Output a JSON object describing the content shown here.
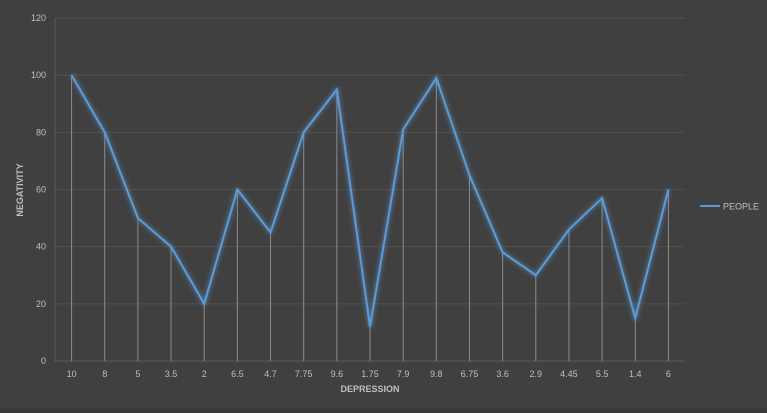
{
  "chart_data": {
    "type": "line",
    "title": "",
    "xlabel": "DEPRESSION",
    "ylabel": "NEGATIVITY",
    "categories": [
      "10",
      "8",
      "5",
      "3.5",
      "2",
      "6.5",
      "4.7",
      "7.75",
      "9.6",
      "1.75",
      "7.9",
      "9.8",
      "6.75",
      "3.6",
      "2.9",
      "4.45",
      "5.5",
      "1.4",
      "6"
    ],
    "series": [
      {
        "name": "PEOPLE",
        "values": [
          100,
          80,
          50,
          40,
          20,
          60,
          45,
          80,
          95,
          12,
          81,
          99,
          65,
          38,
          30,
          46,
          57,
          15,
          60
        ],
        "color": "#5b9bd5"
      }
    ],
    "ylim": [
      0,
      120
    ],
    "yticks": [
      0,
      20,
      40,
      60,
      80,
      100,
      120
    ],
    "grid": true,
    "drop_lines": true,
    "legend": "right",
    "background": "#404040"
  }
}
